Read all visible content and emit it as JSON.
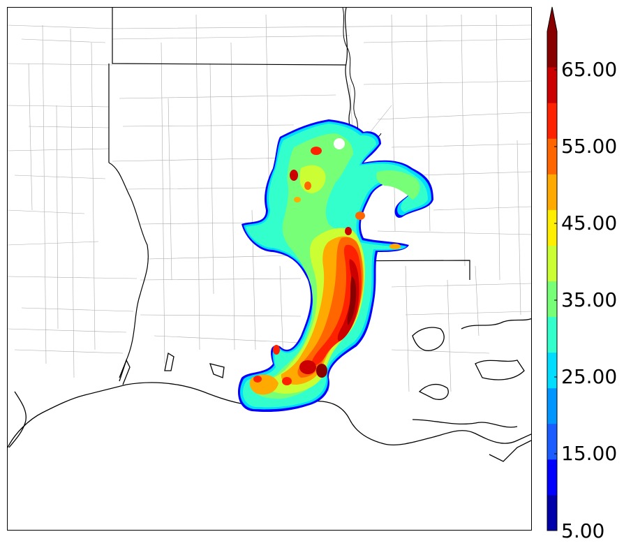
{
  "colorbar": {
    "labels": [
      "65.00",
      "55.00",
      "45.00",
      "35.00",
      "25.00",
      "15.00",
      "5.00"
    ],
    "colors": [
      "#0000aa",
      "#0000ff",
      "#1a5cff",
      "#0096ff",
      "#00ddff",
      "#33ffcc",
      "#77ff77",
      "#ccff33",
      "#ffee00",
      "#ffaa00",
      "#ff6600",
      "#ff2200",
      "#cc0000",
      "#880000"
    ],
    "extend": "max",
    "min": 5,
    "max": 70,
    "step": 5
  },
  "map": {
    "coastline_color": "#000000",
    "county_line_color": "#999999",
    "state_line_color": "#000000"
  }
}
